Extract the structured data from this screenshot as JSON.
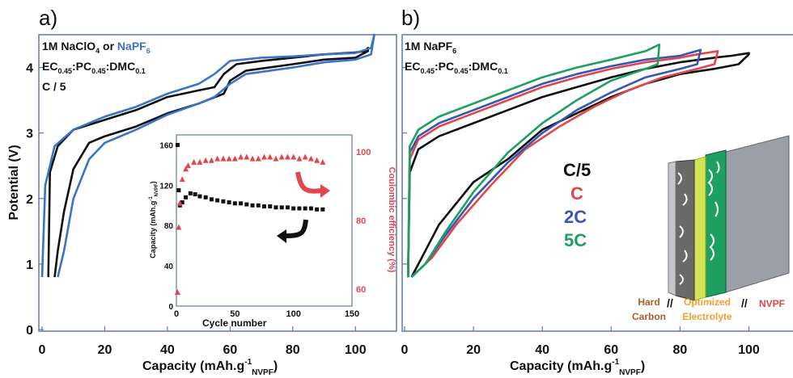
{
  "colors": {
    "black": "#111111",
    "blue": "#3a74c4",
    "red": "#e0474c",
    "navy": "#3a56b4",
    "green": "#1ea060",
    "axis": "#6677aa",
    "orange": "#f0a030",
    "brown": "#a86030",
    "lime": "#cfe24a"
  },
  "chart_data": [
    {
      "panel": "a)",
      "type": "line",
      "ylabel": "Potential (V)",
      "xlabel_main": "Capacity (mAh.g",
      "xlabel_sup": "-1",
      "xlabel_sub": "NVPF",
      "xlabel_end": ")",
      "xlim": [
        0,
        110
      ],
      "ylim": [
        0,
        4.5
      ],
      "xticks": [
        "0",
        "20",
        "40",
        "60",
        "80",
        "100"
      ],
      "yticks": [
        "0",
        "1",
        "2",
        "3",
        "4"
      ],
      "annotation": {
        "line1_a": "1M NaClO",
        "line1_sub": "4",
        "line1_b": " or ",
        "line1_c": "NaPF",
        "line1_c_sub": "6",
        "line2": [
          "EC",
          "0.45",
          ":PC",
          "0.45",
          ":DMC",
          "0.1"
        ],
        "line3": "C / 5"
      },
      "series": [
        {
          "color": "black",
          "charge": [
            [
              2,
              0.8
            ],
            [
              2.5,
              2.4
            ],
            [
              5,
              2.8
            ],
            [
              10,
              3.05
            ],
            [
              20,
              3.2
            ],
            [
              30,
              3.35
            ],
            [
              40,
              3.55
            ],
            [
              50,
              3.65
            ],
            [
              55,
              3.7
            ],
            [
              58,
              3.9
            ],
            [
              62,
              4.05
            ],
            [
              70,
              4.1
            ],
            [
              80,
              4.15
            ],
            [
              90,
              4.2
            ],
            [
              100,
              4.23
            ],
            [
              103,
              4.25
            ],
            [
              104,
              4.3
            ]
          ],
          "discharge": [
            [
              104,
              4.25
            ],
            [
              100,
              4.15
            ],
            [
              90,
              4.12
            ],
            [
              80,
              4.05
            ],
            [
              65,
              3.95
            ],
            [
              60,
              3.8
            ],
            [
              58,
              3.6
            ],
            [
              50,
              3.45
            ],
            [
              40,
              3.3
            ],
            [
              30,
              3.1
            ],
            [
              20,
              2.95
            ],
            [
              15,
              2.85
            ],
            [
              10,
              2.45
            ],
            [
              7,
              1.8
            ],
            [
              5,
              1.2
            ],
            [
              4,
              0.8
            ]
          ]
        },
        {
          "color": "blue",
          "charge": [
            [
              0,
              0.8
            ],
            [
              1,
              2.2
            ],
            [
              4,
              2.8
            ],
            [
              10,
              3.05
            ],
            [
              20,
              3.25
            ],
            [
              30,
              3.4
            ],
            [
              40,
              3.6
            ],
            [
              50,
              3.75
            ],
            [
              55,
              3.9
            ],
            [
              60,
              4.1
            ],
            [
              70,
              4.15
            ],
            [
              80,
              4.17
            ],
            [
              90,
              4.2
            ],
            [
              100,
              4.22
            ],
            [
              105,
              4.3
            ],
            [
              106,
              4.5
            ]
          ],
          "discharge": [
            [
              106,
              4.5
            ],
            [
              105,
              4.2
            ],
            [
              100,
              4.12
            ],
            [
              90,
              4.08
            ],
            [
              80,
              4.0
            ],
            [
              65,
              3.9
            ],
            [
              60,
              3.75
            ],
            [
              55,
              3.55
            ],
            [
              50,
              3.45
            ],
            [
              40,
              3.28
            ],
            [
              30,
              3.05
            ],
            [
              20,
              2.85
            ],
            [
              15,
              2.6
            ],
            [
              10,
              2.0
            ],
            [
              7,
              1.2
            ],
            [
              5,
              0.8
            ]
          ]
        }
      ],
      "inset": {
        "xlabel": "Cycle number",
        "ylabel_left_main": "Capacity (mAh.g",
        "ylabel_left_sup": "-1",
        "ylabel_left_sub": "NVPF",
        "ylabel_left_end": ")",
        "ylabel_right": "Coulombic efficiency (%)",
        "xlim": [
          0,
          150
        ],
        "ylim_left": [
          0,
          170
        ],
        "ylim_right": [
          55,
          105
        ],
        "xticks": [
          "0",
          "50",
          "100",
          "150"
        ],
        "yticks_left": [
          "0",
          "40",
          "80",
          "120",
          "160"
        ],
        "yticks_right": [
          "60",
          "80",
          "100"
        ],
        "capacity": [
          [
            1,
            160
          ],
          [
            2,
            115
          ],
          [
            3,
            100
          ],
          [
            5,
            103
          ],
          [
            8,
            108
          ],
          [
            12,
            112
          ],
          [
            16,
            111
          ],
          [
            20,
            109
          ],
          [
            25,
            108
          ],
          [
            30,
            106
          ],
          [
            35,
            105
          ],
          [
            40,
            104
          ],
          [
            45,
            103
          ],
          [
            50,
            102
          ],
          [
            55,
            102
          ],
          [
            60,
            101
          ],
          [
            65,
            100
          ],
          [
            70,
            100
          ],
          [
            75,
            99
          ],
          [
            80,
            99
          ],
          [
            85,
            98
          ],
          [
            90,
            98
          ],
          [
            95,
            98
          ],
          [
            100,
            97
          ],
          [
            105,
            97
          ],
          [
            110,
            97
          ],
          [
            115,
            97
          ],
          [
            120,
            96
          ],
          [
            125,
            96
          ]
        ],
        "efficiency": [
          [
            1,
            59
          ],
          [
            2,
            78
          ],
          [
            3,
            85
          ],
          [
            5,
            92
          ],
          [
            8,
            95
          ],
          [
            10,
            96
          ],
          [
            15,
            97
          ],
          [
            20,
            97
          ],
          [
            25,
            97.5
          ],
          [
            30,
            97.5
          ],
          [
            35,
            98
          ],
          [
            40,
            98
          ],
          [
            45,
            98
          ],
          [
            50,
            98
          ],
          [
            55,
            98.5
          ],
          [
            60,
            98.5
          ],
          [
            65,
            98
          ],
          [
            70,
            98
          ],
          [
            75,
            98.5
          ],
          [
            80,
            98.5
          ],
          [
            85,
            98
          ],
          [
            90,
            98.5
          ],
          [
            95,
            98.5
          ],
          [
            100,
            98.5
          ],
          [
            105,
            98
          ],
          [
            110,
            98.5
          ],
          [
            115,
            98
          ],
          [
            120,
            97.5
          ],
          [
            125,
            97
          ]
        ]
      }
    },
    {
      "panel": "b)",
      "type": "line",
      "xlabel_main": "Capacity (mAh.g",
      "xlabel_sup": "-1",
      "xlabel_sub": "NVPF",
      "xlabel_end": ")",
      "xlim": [
        0,
        110
      ],
      "ylim": [
        0,
        4.5
      ],
      "xticks": [
        "0",
        "20",
        "40",
        "60",
        "80",
        "100"
      ],
      "annotation": {
        "line1_a": "1M NaPF",
        "line1_sub": "6",
        "line2": [
          "EC",
          "0.45",
          ":PC",
          "0.45",
          ":DMC",
          "0.1"
        ]
      },
      "legend": [
        "C/5",
        "C",
        "2C",
        "5C"
      ],
      "series": [
        {
          "name": "C/5",
          "color": "black",
          "end": 100,
          "charge": [
            [
              1,
              0.8
            ],
            [
              1.5,
              2.4
            ],
            [
              4,
              2.75
            ],
            [
              10,
              2.95
            ],
            [
              20,
              3.15
            ],
            [
              30,
              3.35
            ],
            [
              40,
              3.55
            ],
            [
              50,
              3.7
            ],
            [
              60,
              3.85
            ],
            [
              70,
              3.98
            ],
            [
              80,
              4.08
            ],
            [
              90,
              4.15
            ],
            [
              95,
              4.18
            ],
            [
              100,
              4.22
            ]
          ],
          "discharge": [
            [
              100,
              4.2
            ],
            [
              97,
              4.05
            ],
            [
              90,
              3.98
            ],
            [
              80,
              3.9
            ],
            [
              70,
              3.75
            ],
            [
              60,
              3.55
            ],
            [
              50,
              3.3
            ],
            [
              40,
              3.05
            ],
            [
              30,
              2.6
            ],
            [
              20,
              2.25
            ],
            [
              10,
              1.6
            ],
            [
              5,
              1.1
            ],
            [
              2,
              0.8
            ]
          ]
        },
        {
          "name": "C",
          "color": "red",
          "end": 91,
          "charge": [
            [
              1,
              0.8
            ],
            [
              1.5,
              2.6
            ],
            [
              4,
              2.9
            ],
            [
              10,
              3.1
            ],
            [
              20,
              3.3
            ],
            [
              30,
              3.5
            ],
            [
              40,
              3.7
            ],
            [
              50,
              3.85
            ],
            [
              60,
              3.98
            ],
            [
              70,
              4.08
            ],
            [
              80,
              4.15
            ],
            [
              85,
              4.2
            ],
            [
              91,
              4.25
            ]
          ],
          "discharge": [
            [
              91,
              4.25
            ],
            [
              90,
              4.05
            ],
            [
              85,
              3.98
            ],
            [
              75,
              3.85
            ],
            [
              65,
              3.65
            ],
            [
              55,
              3.4
            ],
            [
              45,
              3.1
            ],
            [
              35,
              2.75
            ],
            [
              25,
              2.2
            ],
            [
              15,
              1.6
            ],
            [
              8,
              1.1
            ],
            [
              2,
              0.8
            ]
          ]
        },
        {
          "name": "2C",
          "color": "navy",
          "end": 86,
          "charge": [
            [
              1,
              0.8
            ],
            [
              1.5,
              2.7
            ],
            [
              4,
              2.95
            ],
            [
              10,
              3.15
            ],
            [
              20,
              3.35
            ],
            [
              30,
              3.55
            ],
            [
              40,
              3.75
            ],
            [
              50,
              3.9
            ],
            [
              60,
              4.02
            ],
            [
              70,
              4.12
            ],
            [
              80,
              4.18
            ],
            [
              86,
              4.27
            ]
          ],
          "discharge": [
            [
              86,
              4.27
            ],
            [
              85,
              4.05
            ],
            [
              80,
              3.98
            ],
            [
              70,
              3.85
            ],
            [
              60,
              3.62
            ],
            [
              50,
              3.35
            ],
            [
              40,
              3.0
            ],
            [
              30,
              2.55
            ],
            [
              20,
              2.0
            ],
            [
              12,
              1.45
            ],
            [
              6,
              1.0
            ],
            [
              2,
              0.8
            ]
          ]
        },
        {
          "name": "5C",
          "color": "green",
          "end": 74,
          "charge": [
            [
              1,
              0.8
            ],
            [
              1.5,
              2.8
            ],
            [
              4,
              3.05
            ],
            [
              10,
              3.25
            ],
            [
              20,
              3.45
            ],
            [
              30,
              3.65
            ],
            [
              40,
              3.85
            ],
            [
              50,
              4.0
            ],
            [
              60,
              4.12
            ],
            [
              70,
              4.25
            ],
            [
              74,
              4.35
            ]
          ],
          "discharge": [
            [
              74,
              4.35
            ],
            [
              73.5,
              4.05
            ],
            [
              70,
              3.98
            ],
            [
              60,
              3.8
            ],
            [
              50,
              3.5
            ],
            [
              40,
              3.15
            ],
            [
              30,
              2.7
            ],
            [
              20,
              2.1
            ],
            [
              12,
              1.5
            ],
            [
              6,
              1.0
            ],
            [
              2,
              0.8
            ]
          ]
        }
      ],
      "cell_labels": {
        "hard": "Hard",
        "carbon": "Carbon",
        "sep1": "//",
        "optimized": "Optimized",
        "electrolyte": "Electrolyte",
        "sep2": "//",
        "nvpf": "NVPF"
      }
    }
  ]
}
